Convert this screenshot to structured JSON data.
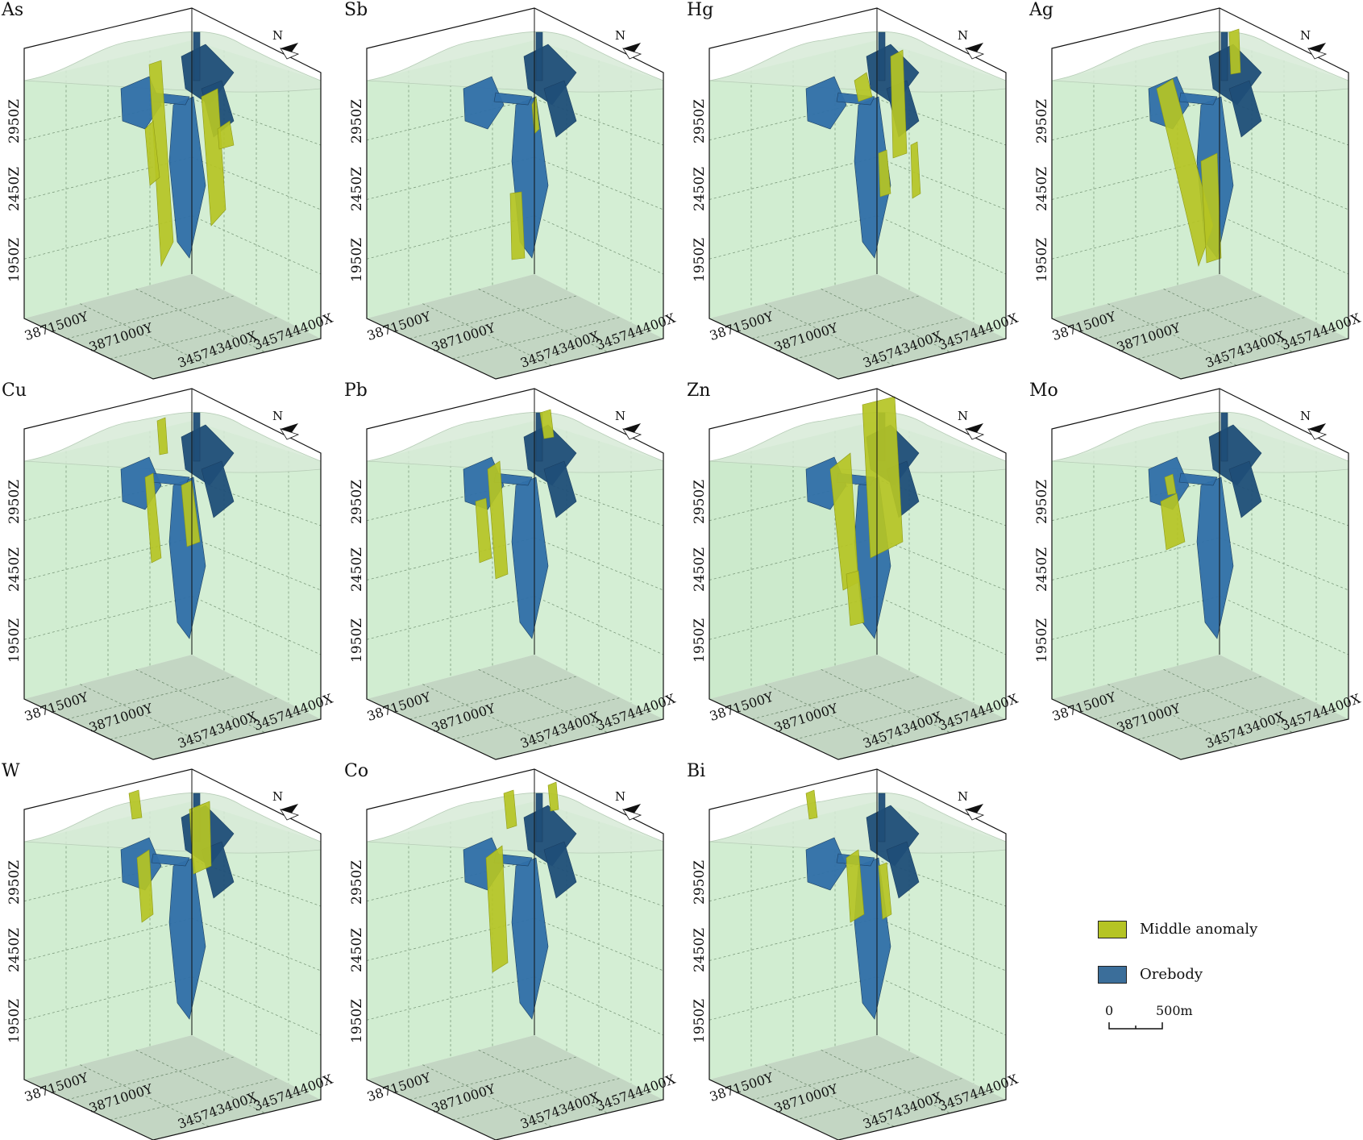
{
  "panels": [
    {
      "label": "As",
      "anomaly": "as"
    },
    {
      "label": "Sb",
      "anomaly": "sb"
    },
    {
      "label": "Hg",
      "anomaly": "hg"
    },
    {
      "label": "Ag",
      "anomaly": "ag"
    },
    {
      "label": "Cu",
      "anomaly": "cu"
    },
    {
      "label": "Pb",
      "anomaly": "pb"
    },
    {
      "label": "Zn",
      "anomaly": "zn"
    },
    {
      "label": "Mo",
      "anomaly": "mo"
    },
    {
      "label": "W",
      "anomaly": "w"
    },
    {
      "label": "Co",
      "anomaly": "co"
    },
    {
      "label": "Bi",
      "anomaly": "bi"
    }
  ],
  "axes": {
    "z_ticks": [
      "2950Z",
      "2450Z",
      "1950Z"
    ],
    "y_ticks": [
      "3871500Y",
      "3871000Y"
    ],
    "x_ticks": [
      "345743400X",
      "345744400X"
    ],
    "north_label": "N"
  },
  "legend": {
    "items": [
      {
        "label": "Middle anomaly",
        "color": "#b5c424"
      },
      {
        "label": "Orebody",
        "color": "#3b6e9a"
      }
    ],
    "scale": {
      "start": "0",
      "end": "500m"
    }
  },
  "colors": {
    "box_fill": "#c6e8c6",
    "floor_fill": "#a9c4a9",
    "terrain_fill": "#d7ead7",
    "orebody": "#2f6fa8",
    "orebody_dark": "#1f4e78",
    "anomaly": "#b5c424"
  }
}
